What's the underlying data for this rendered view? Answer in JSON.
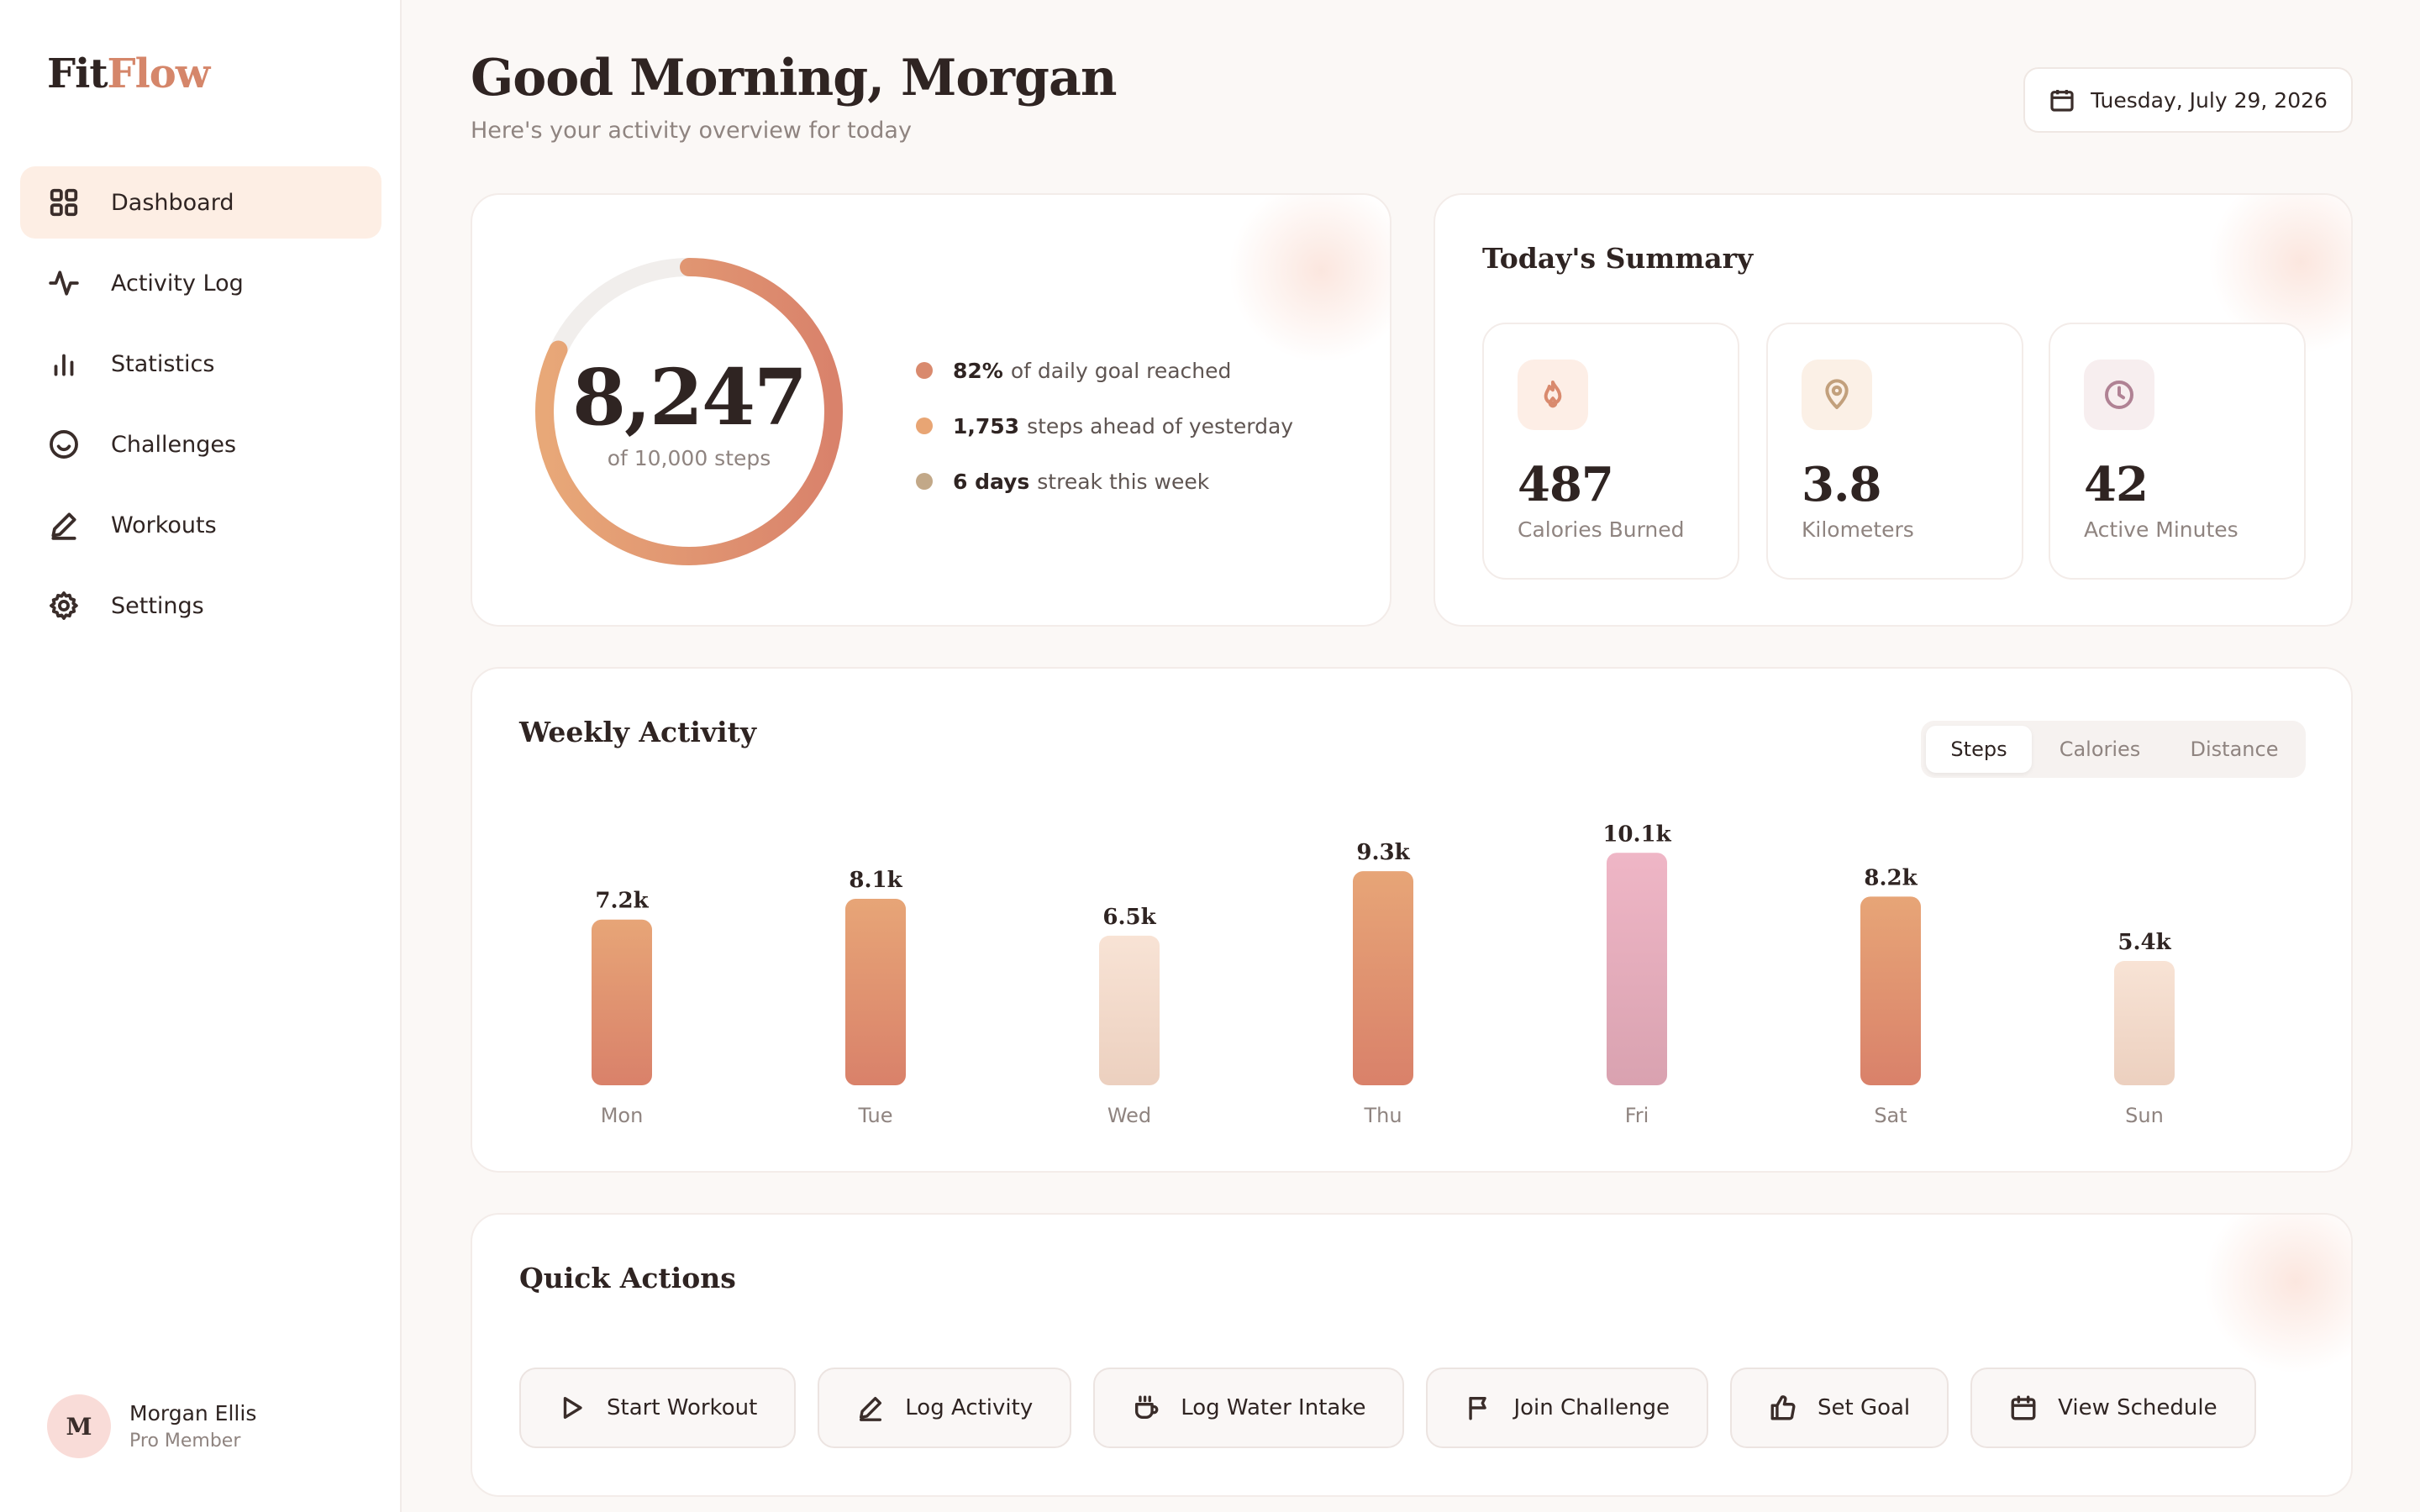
{
  "app": {
    "logo_part1": "Fit",
    "logo_part2": "Flow"
  },
  "sidebar": {
    "items": [
      {
        "label": "Dashboard",
        "icon": "grid-icon",
        "active": true
      },
      {
        "label": "Activity Log",
        "icon": "pulse-icon"
      },
      {
        "label": "Statistics",
        "icon": "bar-chart-icon"
      },
      {
        "label": "Challenges",
        "icon": "smile-icon"
      },
      {
        "label": "Workouts",
        "icon": "pen-icon"
      },
      {
        "label": "Settings",
        "icon": "gear-icon"
      }
    ]
  },
  "user": {
    "initial": "M",
    "name": "Morgan Ellis",
    "role": "Pro Member"
  },
  "header": {
    "greeting": "Good Morning, Morgan",
    "subtitle": "Here's your activity overview for today",
    "date": "Tuesday, July 29, 2026"
  },
  "steps": {
    "count": "8,247",
    "goal_text": "of 10,000 steps",
    "progress": 0.82,
    "stats": [
      {
        "bold": "82%",
        "text": "of daily goal reached",
        "color": "#d98a6e"
      },
      {
        "bold": "1,753",
        "text": "steps ahead of yesterday",
        "color": "#e8a574"
      },
      {
        "bold": "6 days",
        "text": "streak this week",
        "color": "#c2a888"
      }
    ]
  },
  "summary": {
    "title": "Today's Summary",
    "cards": [
      {
        "value": "487",
        "label": "Calories Burned",
        "icon": "flame-icon",
        "color": "#d98a6e",
        "bg": "#fdeee6"
      },
      {
        "value": "3.8",
        "label": "Kilometers",
        "icon": "map-pin-icon",
        "color": "#c2a07c",
        "bg": "#fbf0e6"
      },
      {
        "value": "42",
        "label": "Active Minutes",
        "icon": "clock-icon",
        "color": "#b08294",
        "bg": "#f7eeef"
      }
    ]
  },
  "weekly": {
    "title": "Weekly Activity",
    "tabs": [
      "Steps",
      "Calories",
      "Distance"
    ],
    "active_tab": "Steps"
  },
  "chart_data": {
    "type": "bar",
    "categories": [
      "Mon",
      "Tue",
      "Wed",
      "Thu",
      "Fri",
      "Sat",
      "Sun"
    ],
    "values": [
      7.2,
      8.1,
      6.5,
      9.3,
      10.1,
      8.2,
      5.4
    ],
    "labels": [
      "7.2k",
      "8.1k",
      "6.5k",
      "9.3k",
      "10.1k",
      "8.2k",
      "5.4k"
    ],
    "bar_styles": [
      "orange",
      "orange",
      "light",
      "orange",
      "pink",
      "orange",
      "light"
    ]
  },
  "quick_actions": {
    "title": "Quick Actions",
    "buttons": [
      {
        "label": "Start Workout",
        "icon": "play-icon"
      },
      {
        "label": "Log Activity",
        "icon": "pen-icon"
      },
      {
        "label": "Log Water Intake",
        "icon": "cup-icon"
      },
      {
        "label": "Join Challenge",
        "icon": "flag-icon"
      },
      {
        "label": "Set Goal",
        "icon": "thumbs-up-icon"
      },
      {
        "label": "View Schedule",
        "icon": "calendar-icon"
      }
    ]
  }
}
